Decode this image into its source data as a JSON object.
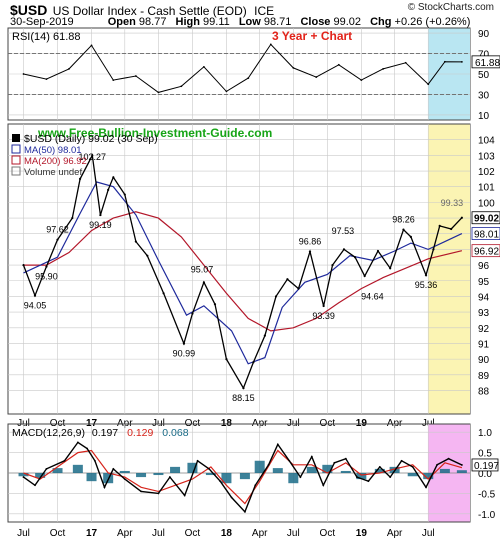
{
  "header": {
    "symbol": "$USD",
    "name": "US Dollar Index - Cash Settle (EOD)",
    "exchange": "ICE",
    "brand": "© StockCharts.com",
    "date": "30-Sep-2019",
    "ohlc": {
      "open_label": "Open",
      "open": "98.77",
      "high_label": "High",
      "high": "99.11",
      "low_label": "Low",
      "low": "98.71",
      "close_label": "Close",
      "close": "99.02",
      "chg_label": "Chg",
      "chg": "+0.26 (+0.26%)"
    }
  },
  "colors": {
    "price": "#000000",
    "ma50": "#1f2a9c",
    "ma200": "#b3172a",
    "rsi_highlight": "#b9e6f2",
    "price_highlight": "#fbf4b3",
    "macd_highlight": "#f5b6f2",
    "macd_signal": "#d6241b",
    "macd_hist": "#1a6b87",
    "annotation": "#e2231a",
    "website": "#17a517",
    "grid": "#c9c9c9"
  },
  "rsi_panel": {
    "legend": "RSI(14) 61.88",
    "annotation": "3 Year + Chart",
    "last_value_label": "61.88"
  },
  "price_panel": {
    "website": "www.Free-Bullion-Investment-Guide.com",
    "legend_price": "$USD (Daily) 99.02 (30 Sep)",
    "legend_ma50": "MA(50) 98.01",
    "legend_ma200": "MA(200) 96.92",
    "legend_volume": "Volume undef",
    "last_close_label": "99.02",
    "ma50_label": "98.01",
    "ma200_label": "96.92"
  },
  "macd_panel": {
    "legend_title": "MACD(12,26,9)",
    "legend_macd": "0.197",
    "legend_signal": "0.129",
    "legend_hist": "0.068",
    "last_value_label": "0.197"
  },
  "chart_data": [
    {
      "type": "line",
      "name": "RSI(14)",
      "ylim": [
        5,
        95
      ],
      "yticks": [
        10,
        30,
        50,
        70,
        90
      ],
      "reference_lines": [
        30,
        70
      ],
      "x_axis": "date",
      "points_x": [
        "2016-07-01",
        "2016-09-01",
        "2016-11-01",
        "2017-01-01",
        "2017-03-01",
        "2017-05-01",
        "2017-07-01",
        "2017-09-01",
        "2017-11-01",
        "2018-01-01",
        "2018-03-01",
        "2018-05-01",
        "2018-07-01",
        "2018-09-01",
        "2018-11-01",
        "2019-01-01",
        "2019-03-01",
        "2019-05-01",
        "2019-07-01",
        "2019-08-15",
        "2019-09-30"
      ],
      "values": [
        50,
        45,
        55,
        78,
        44,
        48,
        32,
        38,
        57,
        33,
        46,
        79,
        56,
        47,
        59,
        44,
        55,
        61,
        40,
        62,
        61.88
      ]
    },
    {
      "type": "line",
      "name": "$USD (Daily)",
      "ylim": [
        86.5,
        105
      ],
      "yticks": [
        88,
        89,
        90,
        91,
        92,
        93,
        94,
        95,
        96,
        97,
        98,
        99,
        100,
        101,
        102,
        103,
        104
      ],
      "x_axis": "date",
      "series": [
        {
          "name": "$USD (Daily) 99.02 (30 Sep)",
          "x": [
            "2016-07-01",
            "2016-08-01",
            "2016-09-01",
            "2016-10-01",
            "2016-11-10",
            "2016-12-01",
            "2017-01-03",
            "2017-01-25",
            "2017-02-15",
            "2017-03-01",
            "2017-04-01",
            "2017-05-01",
            "2017-06-01",
            "2017-07-15",
            "2017-09-08",
            "2017-10-01",
            "2017-11-01",
            "2017-12-01",
            "2018-01-01",
            "2018-02-16",
            "2018-03-15",
            "2018-04-15",
            "2018-05-15",
            "2018-06-15",
            "2018-07-15",
            "2018-08-15",
            "2018-09-21",
            "2018-10-15",
            "2018-11-15",
            "2018-12-15",
            "2019-01-10",
            "2019-02-15",
            "2019-03-20",
            "2019-04-25",
            "2019-05-15",
            "2019-06-25",
            "2019-07-15",
            "2019-08-01",
            "2019-09-01",
            "2019-09-30"
          ],
          "values": [
            96.0,
            94.05,
            95.9,
            97.62,
            99.0,
            101.5,
            103.0,
            99.19,
            100.8,
            101.6,
            100.5,
            97.5,
            96.6,
            94.2,
            90.99,
            92.9,
            94.9,
            93.5,
            90.0,
            88.15,
            89.8,
            91.5,
            94.0,
            95.1,
            94.5,
            96.86,
            93.39,
            96.0,
            97.0,
            96.5,
            95.3,
            96.9,
            95.8,
            98.26,
            97.8,
            95.36,
            97.0,
            98.5,
            98.3,
            99.02
          ]
        },
        {
          "name": "MA(50) 98.01",
          "x": [
            "2016-07-01",
            "2016-10-01",
            "2016-12-01",
            "2017-01-15",
            "2017-03-01",
            "2017-05-01",
            "2017-07-01",
            "2017-09-15",
            "2017-11-01",
            "2018-01-15",
            "2018-03-01",
            "2018-04-15",
            "2018-06-01",
            "2018-08-01",
            "2018-10-01",
            "2018-12-01",
            "2019-02-01",
            "2019-04-01",
            "2019-05-15",
            "2019-07-01",
            "2019-08-15",
            "2019-09-30"
          ],
          "values": [
            95.5,
            96.5,
            99.3,
            101.3,
            101.0,
            99.2,
            96.3,
            92.8,
            93.4,
            91.8,
            89.7,
            90.1,
            93.3,
            94.9,
            95.4,
            96.6,
            96.3,
            96.9,
            97.4,
            97.0,
            97.5,
            98.01
          ]
        },
        {
          "name": "MA(200) 96.92",
          "x": [
            "2016-07-01",
            "2016-09-01",
            "2016-11-01",
            "2017-01-01",
            "2017-03-01",
            "2017-05-01",
            "2017-07-01",
            "2017-09-01",
            "2017-11-01",
            "2018-01-01",
            "2018-03-01",
            "2018-05-01",
            "2018-07-01",
            "2018-09-01",
            "2018-11-01",
            "2019-01-01",
            "2019-03-01",
            "2019-05-01",
            "2019-07-01",
            "2019-09-30"
          ],
          "values": [
            96.0,
            96.0,
            96.8,
            98.2,
            99.0,
            99.4,
            99.0,
            97.8,
            96.0,
            94.2,
            92.6,
            91.8,
            92.0,
            92.6,
            93.6,
            94.5,
            95.2,
            95.8,
            96.4,
            96.92
          ]
        }
      ],
      "price_labels": [
        {
          "text": "97.62",
          "value": 97.62,
          "date": "2016-10-01"
        },
        {
          "text": "94.05",
          "value": 94.05,
          "date": "2016-08-01"
        },
        {
          "text": "95.90",
          "value": 95.9,
          "date": "2016-09-01"
        },
        {
          "text": "102.27",
          "value": 102.27,
          "date": "2017-01-03"
        },
        {
          "text": "99.19",
          "value": 99.19,
          "date": "2017-01-25"
        },
        {
          "text": "95.07",
          "value": 95.07,
          "date": "2017-10-27"
        },
        {
          "text": "90.99",
          "value": 90.99,
          "date": "2017-09-08"
        },
        {
          "text": "88.15",
          "value": 88.15,
          "date": "2018-02-16"
        },
        {
          "text": "96.86",
          "value": 96.86,
          "date": "2018-08-15"
        },
        {
          "text": "93.39",
          "value": 93.39,
          "date": "2018-09-21"
        },
        {
          "text": "97.53",
          "value": 97.53,
          "date": "2018-11-12"
        },
        {
          "text": "94.64",
          "value": 94.64,
          "date": "2019-01-31"
        },
        {
          "text": "98.26",
          "value": 98.26,
          "date": "2019-04-25"
        },
        {
          "text": "95.36",
          "value": 95.36,
          "date": "2019-06-25"
        },
        {
          "text": "99.33",
          "value": 99.33,
          "date": "2019-09-03"
        }
      ]
    },
    {
      "type": "line",
      "name": "MACD(12,26,9)",
      "ylim": [
        -1.2,
        1.2
      ],
      "yticks": [
        1.0,
        0.5,
        0.0,
        -0.5,
        -1.0
      ],
      "x_axis": "date",
      "series": [
        {
          "name": "0.197",
          "x": [
            "2016-07-01",
            "2016-08-01",
            "2016-09-01",
            "2016-10-20",
            "2016-11-25",
            "2016-12-20",
            "2017-01-10",
            "2017-02-05",
            "2017-03-01",
            "2017-04-01",
            "2017-05-15",
            "2017-07-01",
            "2017-08-01",
            "2017-09-10",
            "2017-10-15",
            "2017-11-15",
            "2017-12-15",
            "2018-01-15",
            "2018-02-20",
            "2018-03-20",
            "2018-04-25",
            "2018-05-20",
            "2018-06-20",
            "2018-07-20",
            "2018-08-20",
            "2018-09-20",
            "2018-10-20",
            "2018-11-20",
            "2018-12-20",
            "2019-01-20",
            "2019-02-20",
            "2019-03-20",
            "2019-04-20",
            "2019-05-20",
            "2019-06-25",
            "2019-07-25",
            "2019-08-25",
            "2019-09-30"
          ],
          "values": [
            -0.1,
            -0.3,
            0.1,
            0.3,
            0.75,
            0.6,
            0.3,
            -0.35,
            0.1,
            -0.15,
            -0.45,
            -0.5,
            -0.1,
            -0.55,
            0.3,
            0.1,
            -0.2,
            -0.6,
            -0.95,
            -0.3,
            0.2,
            0.7,
            0.3,
            -0.1,
            0.4,
            -0.3,
            0.25,
            0.35,
            -0.1,
            -0.2,
            0.15,
            -0.1,
            0.3,
            0.15,
            -0.35,
            0.2,
            0.35,
            0.197
          ]
        },
        {
          "name": "0.129",
          "x": [
            "2016-07-01",
            "2016-08-15",
            "2016-10-01",
            "2016-11-25",
            "2017-01-01",
            "2017-02-15",
            "2017-04-01",
            "2017-05-15",
            "2017-07-01",
            "2017-08-15",
            "2017-10-01",
            "2017-11-20",
            "2018-01-01",
            "2018-02-20",
            "2018-04-01",
            "2018-05-20",
            "2018-07-01",
            "2018-08-20",
            "2018-10-01",
            "2018-11-20",
            "2019-01-01",
            "2019-02-20",
            "2019-04-01",
            "2019-05-20",
            "2019-07-01",
            "2019-08-15",
            "2019-09-30"
          ],
          "values": [
            0.0,
            -0.15,
            0.15,
            0.5,
            0.55,
            0.0,
            -0.1,
            -0.35,
            -0.45,
            -0.3,
            -0.15,
            0.15,
            -0.3,
            -0.75,
            -0.2,
            0.55,
            0.2,
            0.2,
            0.0,
            0.25,
            -0.05,
            0.0,
            0.1,
            0.2,
            -0.15,
            0.25,
            0.129
          ]
        },
        {
          "name": "0.068",
          "type": "histogram",
          "x": [
            "2016-07-01",
            "2016-08-15",
            "2016-10-01",
            "2016-11-25",
            "2017-01-01",
            "2017-02-15",
            "2017-04-01",
            "2017-05-15",
            "2017-07-01",
            "2017-08-15",
            "2017-10-01",
            "2017-11-20",
            "2018-01-01",
            "2018-02-20",
            "2018-04-01",
            "2018-05-20",
            "2018-07-01",
            "2018-08-20",
            "2018-10-01",
            "2018-11-20",
            "2019-01-01",
            "2019-02-20",
            "2019-04-01",
            "2019-05-20",
            "2019-07-01",
            "2019-08-15",
            "2019-09-30"
          ],
          "values": [
            -0.08,
            -0.12,
            0.12,
            0.2,
            -0.2,
            -0.25,
            0.05,
            -0.1,
            -0.05,
            0.15,
            0.25,
            -0.05,
            -0.25,
            -0.15,
            0.3,
            0.12,
            -0.25,
            0.15,
            0.2,
            0.05,
            -0.15,
            0.1,
            0.15,
            -0.08,
            -0.15,
            0.1,
            0.068
          ]
        }
      ],
      "reference_lines": [
        0
      ]
    }
  ],
  "x_axis": {
    "tick_labels": [
      "Jul",
      "Oct",
      "17",
      "Apr",
      "Jul",
      "Oct",
      "18",
      "Apr",
      "Jul",
      "Oct",
      "19",
      "Apr",
      "Jul"
    ],
    "tick_dates": [
      "2016-07-01",
      "2016-10-01",
      "2017-01-01",
      "2017-04-01",
      "2017-07-01",
      "2017-10-01",
      "2018-01-01",
      "2018-04-01",
      "2018-07-01",
      "2018-10-01",
      "2019-01-01",
      "2019-04-01",
      "2019-07-01"
    ],
    "bold_labels": [
      "17",
      "18",
      "19"
    ],
    "highlight_range": [
      "2019-07-01",
      "2019-09-30"
    ]
  }
}
